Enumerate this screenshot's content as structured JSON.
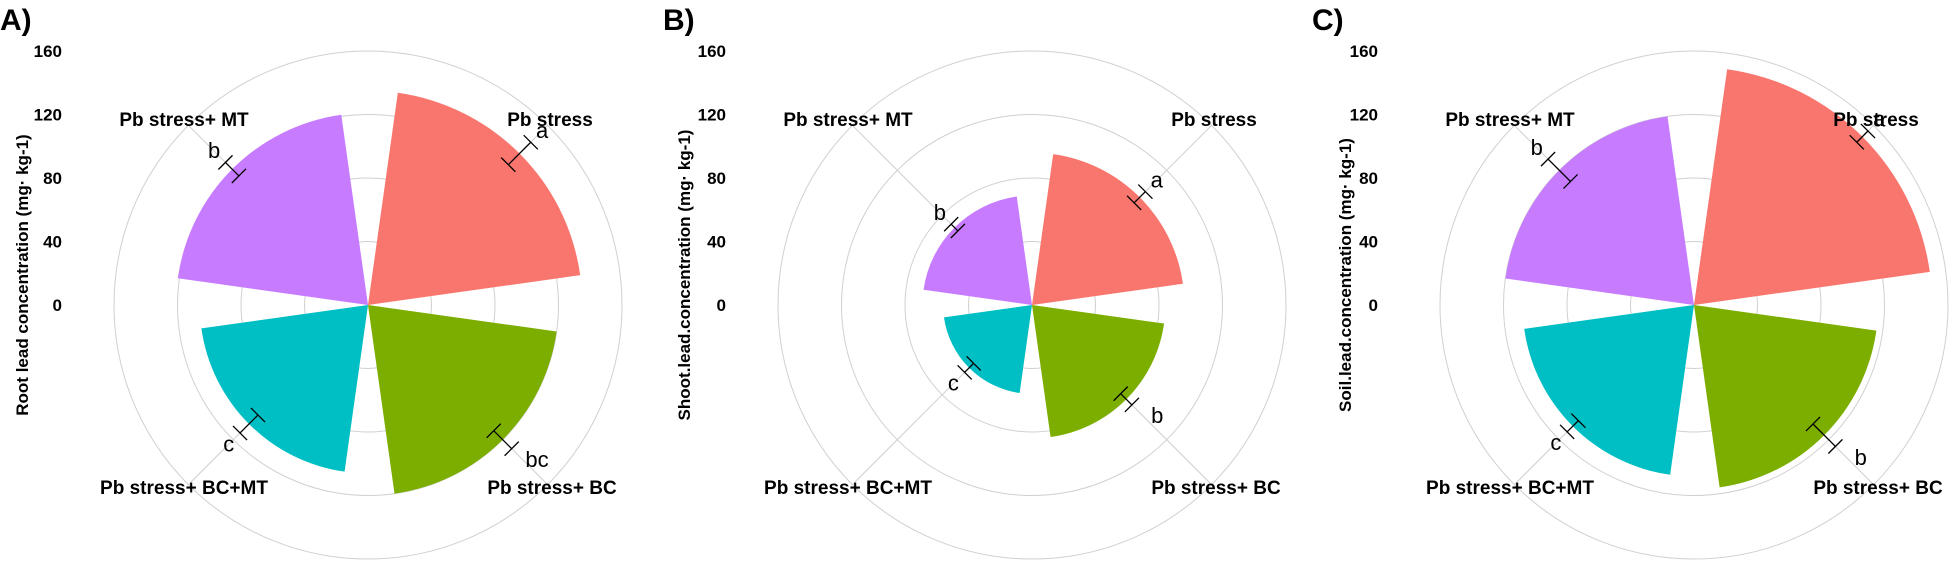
{
  "chart_data": [
    {
      "type": "polar-bar",
      "panel": "A)",
      "ylabel": "Root lead concentration (mg· kg-1)",
      "rticks": [
        "0",
        "40",
        "80",
        "120",
        "160"
      ],
      "rmax": 160,
      "categories": [
        "Pb stress",
        "Pb stress+ BC",
        "Pb stress+ BC+MT",
        "Pb stress+ MT"
      ],
      "values": [
        135,
        120,
        106,
        121
      ],
      "errors": [
        10,
        8,
        8,
        6
      ],
      "letters": [
        "a",
        "bc",
        "c",
        "b"
      ]
    },
    {
      "type": "polar-bar",
      "panel": "B)",
      "ylabel": "Shoot.lead.concentration (mg· kg-1)",
      "rticks": [
        "0",
        "40",
        "80",
        "120",
        "160"
      ],
      "rmax": 160,
      "categories": [
        "Pb stress",
        "Pb stress+ BC",
        "Pb stress+ BC+MT",
        "Pb stress+ MT"
      ],
      "values": [
        96,
        84,
        56,
        69
      ],
      "errors": [
        5,
        5,
        4,
        3
      ],
      "letters": [
        "a",
        "b",
        "c",
        "b"
      ]
    },
    {
      "type": "polar-bar",
      "panel": "C)",
      "ylabel": "Soil.lead.concentration (mg· kg-1)",
      "rticks": [
        "0",
        "40",
        "80",
        "120",
        "160"
      ],
      "rmax": 160,
      "categories": [
        "Pb stress",
        "Pb stress+ BC",
        "Pb stress+ BC+MT",
        "Pb stress+ MT"
      ],
      "values": [
        150,
        116,
        108,
        120
      ],
      "errors": [
        5,
        10,
        5,
        10
      ],
      "letters": [
        "a",
        "b",
        "c",
        "b"
      ]
    }
  ],
  "colors": {
    "Pb stress": "#F8766D",
    "Pb stress+ BC": "#7CAE00",
    "Pb stress+ BC+MT": "#00BFC4",
    "Pb stress+ MT": "#C77CFF",
    "grid": "#D0D0D0"
  }
}
